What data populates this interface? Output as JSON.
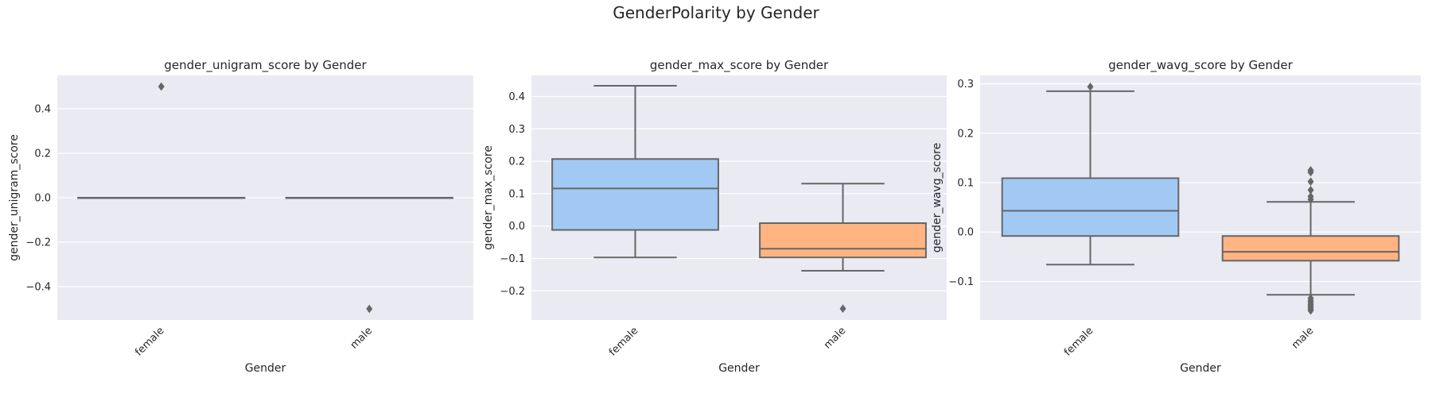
{
  "figure": {
    "title": "GenderPolarity by Gender"
  },
  "colors": {
    "female": "#a1c9f4",
    "male": "#ffb482",
    "background": "#eaeaf2",
    "grid": "#ffffff",
    "line": "#666666"
  },
  "chart_data": [
    {
      "type": "box",
      "title": "gender_unigram_score by Gender",
      "xlabel": "Gender",
      "ylabel": "gender_unigram_score",
      "categories": [
        "female",
        "male"
      ],
      "ylim": [
        -0.55,
        0.55
      ],
      "yticks": [
        -0.4,
        -0.2,
        0.0,
        0.2,
        0.4
      ],
      "ytick_labels": [
        "−0.4",
        "−0.2",
        "0.0",
        "0.2",
        "0.4"
      ],
      "boxes": [
        {
          "category": "female",
          "whislo": 0.0,
          "q1": 0.0,
          "med": 0.0,
          "q3": 0.0,
          "whishi": 0.0,
          "fliers": [
            0.5
          ]
        },
        {
          "category": "male",
          "whislo": 0.0,
          "q1": 0.0,
          "med": 0.0,
          "q3": 0.0,
          "whishi": 0.0,
          "fliers": [
            -0.5
          ]
        }
      ]
    },
    {
      "type": "box",
      "title": "gender_max_score by Gender",
      "xlabel": "Gender",
      "ylabel": "gender_max_score",
      "categories": [
        "female",
        "male"
      ],
      "ylim": [
        -0.29,
        0.465
      ],
      "yticks": [
        -0.2,
        -0.1,
        0.0,
        0.1,
        0.2,
        0.3,
        0.4
      ],
      "ytick_labels": [
        "−0.2",
        "−0.1",
        "0.0",
        "0.1",
        "0.2",
        "0.3",
        "0.4"
      ],
      "boxes": [
        {
          "category": "female",
          "whislo": -0.097,
          "q1": -0.012,
          "med": 0.116,
          "q3": 0.207,
          "whishi": 0.433,
          "fliers": []
        },
        {
          "category": "male",
          "whislo": -0.138,
          "q1": -0.097,
          "med": -0.07,
          "q3": 0.009,
          "whishi": 0.131,
          "fliers": [
            -0.255
          ]
        }
      ]
    },
    {
      "type": "box",
      "title": "gender_wavg_score by Gender",
      "xlabel": "Gender",
      "ylabel": "gender_wavg_score",
      "categories": [
        "female",
        "male"
      ],
      "ylim": [
        -0.178,
        0.317
      ],
      "yticks": [
        -0.1,
        0.0,
        0.1,
        0.2,
        0.3
      ],
      "ytick_labels": [
        "−0.1",
        "0.0",
        "0.1",
        "0.2",
        "0.3"
      ],
      "boxes": [
        {
          "category": "female",
          "whislo": -0.066,
          "q1": -0.008,
          "med": 0.043,
          "q3": 0.109,
          "whishi": 0.285,
          "fliers": [
            0.294
          ]
        },
        {
          "category": "male",
          "whislo": -0.127,
          "q1": -0.058,
          "med": -0.04,
          "q3": -0.008,
          "whishi": 0.061,
          "fliers": [
            0.066,
            0.072,
            0.085,
            0.102,
            0.121,
            0.125,
            -0.134,
            -0.139,
            -0.143,
            -0.147,
            -0.151,
            -0.155,
            -0.159
          ]
        }
      ]
    }
  ]
}
